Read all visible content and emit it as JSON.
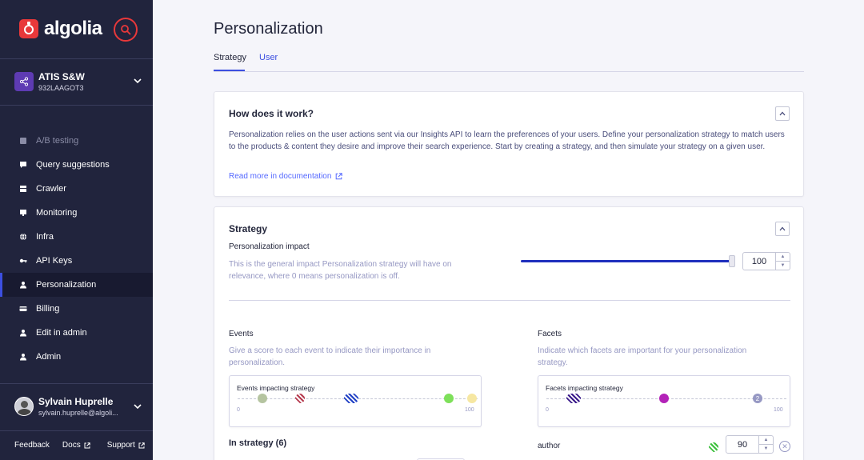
{
  "sidebar": {
    "brand": "algolia",
    "app": {
      "name": "ATIS S&W",
      "id": "932LAAGOT3"
    },
    "nav": [
      {
        "label": "A/B testing",
        "icon": "flask-icon",
        "state": "disabled"
      },
      {
        "label": "Query suggestions",
        "icon": "chat-icon",
        "state": "normal"
      },
      {
        "label": "Crawler",
        "icon": "crawler-icon",
        "state": "normal"
      },
      {
        "label": "Monitoring",
        "icon": "monitor-icon",
        "state": "normal"
      },
      {
        "label": "Infra",
        "icon": "globe-icon",
        "state": "normal"
      },
      {
        "label": "API Keys",
        "icon": "key-icon",
        "state": "normal"
      },
      {
        "label": "Personalization",
        "icon": "person-icon",
        "state": "active"
      },
      {
        "label": "Billing",
        "icon": "card-icon",
        "state": "normal"
      },
      {
        "label": "Edit in admin",
        "icon": "person-icon",
        "state": "normal"
      },
      {
        "label": "Admin",
        "icon": "person-icon",
        "state": "normal"
      }
    ],
    "user": {
      "name": "Sylvain Huprelle",
      "email": "sylvain.huprelle@algoli..."
    },
    "footer": {
      "feedback": "Feedback",
      "docs": "Docs",
      "support": "Support"
    }
  },
  "main": {
    "title": "Personalization",
    "tabs": {
      "strategy": "Strategy",
      "user": "User"
    },
    "how": {
      "title": "How does it work?",
      "body": "Personalization relies on the user actions sent via our Insights API to learn the preferences of your users. Define your personalization strategy to match users to the products & content they desire and improve their search experience. Start by creating a strategy, and then simulate your strategy on a given user.",
      "link": "Read more in documentation"
    },
    "strategy": {
      "title": "Strategy",
      "impact_label": "Personalization impact",
      "impact_desc": "This is the general impact Personalization strategy will have on relevance, where 0 means personalization is off.",
      "impact_value": "100",
      "events_label": "Events",
      "events_desc": "Give a score to each event to indicate their importance in personalization.",
      "events_chart_title": "Events impacting strategy",
      "events_min": "0",
      "events_max": "100",
      "facets_label": "Facets",
      "facets_desc": "Indicate which facets are important for your personalization strategy.",
      "facets_chart_title": "Facets impacting strategy",
      "facets_min": "0",
      "facets_max": "100",
      "facets_badge": "2",
      "in_strategy": "In strategy (6)",
      "facet_row": {
        "name": "author",
        "value": "90"
      }
    }
  },
  "colors": {
    "accent": "#3c4fe0",
    "sidebar": "#21243d",
    "brand": "#e8383a"
  }
}
